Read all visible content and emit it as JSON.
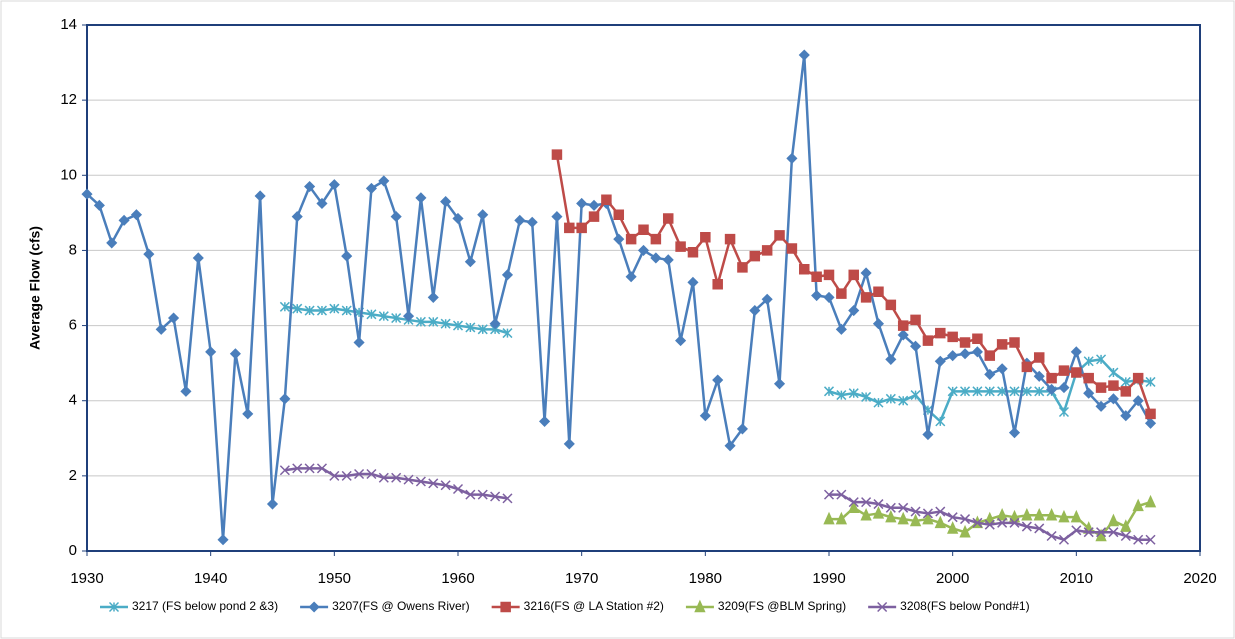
{
  "chart_data": {
    "type": "line",
    "y_label": "Average Flow (cfs)",
    "xlim": [
      1930,
      2020
    ],
    "xticks": [
      1930,
      1940,
      1950,
      1960,
      1970,
      1980,
      1990,
      2000,
      2010,
      2020
    ],
    "ylim": [
      0,
      14
    ],
    "yticks": [
      0,
      2,
      4,
      6,
      8,
      10,
      12,
      14
    ],
    "grid": true,
    "legend": "bottom",
    "series": [
      {
        "name": "3217 (FS below pond 2 &3)",
        "color": "#4bacc6",
        "marker": "asterisk",
        "x": [
          1946,
          1947,
          1948,
          1949,
          1950,
          1951,
          1952,
          1953,
          1954,
          1955,
          1956,
          1957,
          1958,
          1959,
          1960,
          1961,
          1962,
          1963,
          1964,
          1965,
          1966,
          1967,
          1968,
          1969,
          1970,
          1971,
          1972,
          1973,
          1974,
          1975,
          1976,
          1977,
          1978,
          1979,
          1980,
          1981,
          1982,
          1983,
          1984,
          1985,
          1986,
          1987,
          1988,
          1989,
          1990,
          1991,
          1992,
          1993,
          1994,
          1995,
          1996,
          1997,
          1998,
          1999,
          2000,
          2001,
          2002,
          2003,
          2004,
          2005,
          2006,
          2007,
          2008,
          2009,
          2010,
          2011,
          2012,
          2013,
          2014,
          2015,
          2016
        ],
        "values": [
          6.5,
          6.45,
          6.4,
          6.4,
          6.45,
          6.4,
          6.35,
          6.3,
          6.25,
          6.2,
          6.15,
          6.1,
          6.1,
          6.05,
          6.0,
          5.95,
          5.9,
          5.9,
          5.8,
          null,
          null,
          null,
          null,
          null,
          null,
          null,
          null,
          null,
          null,
          null,
          null,
          null,
          null,
          null,
          null,
          null,
          null,
          null,
          null,
          null,
          null,
          null,
          null,
          null,
          4.25,
          4.15,
          4.2,
          4.1,
          3.95,
          4.05,
          4.0,
          4.15,
          3.75,
          3.45,
          4.25,
          4.25,
          4.25,
          4.25,
          4.25,
          4.25,
          4.25,
          4.25,
          4.25,
          3.7,
          4.75,
          5.05,
          5.1,
          4.75,
          4.5,
          4.55,
          4.5
        ]
      },
      {
        "name": "3207(FS @ Owens River)",
        "color": "#4a7ebb",
        "marker": "diamond",
        "x": [
          1930,
          1931,
          1932,
          1933,
          1934,
          1935,
          1936,
          1937,
          1938,
          1939,
          1940,
          1941,
          1942,
          1943,
          1944,
          1945,
          1946,
          1947,
          1948,
          1949,
          1950,
          1951,
          1952,
          1953,
          1954,
          1955,
          1956,
          1957,
          1958,
          1959,
          1960,
          1961,
          1962,
          1963,
          1964,
          1965,
          1966,
          1967,
          1968,
          1969,
          1970,
          1971,
          1972,
          1973,
          1974,
          1975,
          1976,
          1977,
          1978,
          1979,
          1980,
          1981,
          1982,
          1983,
          1984,
          1985,
          1986,
          1987,
          1988,
          1989,
          1990,
          1991,
          1992,
          1993,
          1994,
          1995,
          1996,
          1997,
          1998,
          1999,
          2000,
          2001,
          2002,
          2003,
          2004,
          2005,
          2006,
          2007,
          2008,
          2009,
          2010,
          2011,
          2012,
          2013,
          2014,
          2015,
          2016
        ],
        "values": [
          9.5,
          9.2,
          8.2,
          8.8,
          8.95,
          7.9,
          5.9,
          6.2,
          4.25,
          7.8,
          5.3,
          0.3,
          5.25,
          3.65,
          9.45,
          1.25,
          4.05,
          8.9,
          9.7,
          9.25,
          9.75,
          7.85,
          5.55,
          9.65,
          9.85,
          8.9,
          6.25,
          9.4,
          6.75,
          9.3,
          8.85,
          7.7,
          8.95,
          6.05,
          7.35,
          8.8,
          8.75,
          3.45,
          8.9,
          2.85,
          9.25,
          9.2,
          9.25,
          8.3,
          7.3,
          8.0,
          7.8,
          7.75,
          5.6,
          7.15,
          3.6,
          4.55,
          2.8,
          3.25,
          6.4,
          6.7,
          4.45,
          10.45,
          13.2,
          6.8,
          6.75,
          5.9,
          6.4,
          7.4,
          6.05,
          5.1,
          5.75,
          5.45,
          3.1,
          5.05,
          5.2,
          5.25,
          5.3,
          4.7,
          4.85,
          3.15,
          5.0,
          4.65,
          4.3,
          4.35,
          5.3,
          4.2,
          3.85,
          4.05,
          3.6,
          4.0,
          3.4
        ]
      },
      {
        "name": "3216(FS @ LA Station #2)",
        "color": "#be4b48",
        "marker": "square",
        "x": [
          1968,
          1969,
          1970,
          1971,
          1972,
          1973,
          1974,
          1975,
          1976,
          1977,
          1978,
          1979,
          1980,
          1981,
          1982,
          1983,
          1984,
          1985,
          1986,
          1987,
          1988,
          1989,
          1990,
          1991,
          1992,
          1993,
          1994,
          1995,
          1996,
          1997,
          1998,
          1999,
          2000,
          2001,
          2002,
          2003,
          2004,
          2005,
          2006,
          2007,
          2008,
          2009,
          2010,
          2011,
          2012,
          2013,
          2014,
          2015,
          2016
        ],
        "values": [
          10.55,
          8.6,
          8.6,
          8.9,
          9.35,
          8.95,
          8.3,
          8.55,
          8.3,
          8.85,
          8.1,
          7.95,
          8.35,
          7.1,
          8.3,
          7.55,
          7.85,
          8.0,
          8.4,
          8.05,
          7.5,
          7.3,
          7.35,
          6.85,
          7.35,
          6.75,
          6.9,
          6.55,
          6.0,
          6.15,
          5.6,
          5.8,
          5.7,
          5.55,
          5.65,
          5.2,
          5.5,
          5.55,
          4.9,
          5.15,
          4.6,
          4.8,
          4.75,
          4.6,
          4.35,
          4.4,
          4.25,
          4.6,
          3.65
        ]
      },
      {
        "name": "3209(FS @BLM Spring)",
        "color": "#98b954",
        "marker": "triangle",
        "x": [
          1990,
          1991,
          1992,
          1993,
          1994,
          1995,
          1996,
          1997,
          1998,
          1999,
          2000,
          2001,
          2002,
          2003,
          2004,
          2005,
          2006,
          2007,
          2008,
          2009,
          2010,
          2011,
          2012,
          2013,
          2014,
          2015,
          2016
        ],
        "values": [
          0.85,
          0.85,
          1.15,
          0.95,
          1.0,
          0.9,
          0.85,
          0.8,
          0.85,
          0.75,
          0.6,
          0.5,
          0.75,
          0.85,
          0.95,
          0.9,
          0.95,
          0.95,
          0.95,
          0.9,
          0.9,
          0.6,
          0.4,
          0.8,
          0.65,
          1.2,
          1.3
        ]
      },
      {
        "name": "3208(FS below Pond#1)",
        "color": "#7d60a0",
        "marker": "x",
        "x": [
          1946,
          1947,
          1948,
          1949,
          1950,
          1951,
          1952,
          1953,
          1954,
          1955,
          1956,
          1957,
          1958,
          1959,
          1960,
          1961,
          1962,
          1963,
          1964,
          1965,
          1966,
          1967,
          1968,
          1969,
          1970,
          1971,
          1972,
          1973,
          1974,
          1975,
          1976,
          1977,
          1978,
          1979,
          1980,
          1981,
          1982,
          1983,
          1984,
          1985,
          1986,
          1987,
          1988,
          1989,
          1990,
          1991,
          1992,
          1993,
          1994,
          1995,
          1996,
          1997,
          1998,
          1999,
          2000,
          2001,
          2002,
          2003,
          2004,
          2005,
          2006,
          2007,
          2008,
          2009,
          2010,
          2011,
          2012,
          2013,
          2014,
          2015,
          2016
        ],
        "values": [
          2.15,
          2.2,
          2.2,
          2.2,
          2.0,
          2.0,
          2.05,
          2.05,
          1.95,
          1.95,
          1.9,
          1.85,
          1.8,
          1.75,
          1.65,
          1.5,
          1.5,
          1.45,
          1.4,
          null,
          null,
          null,
          null,
          null,
          null,
          null,
          null,
          null,
          null,
          null,
          null,
          null,
          null,
          null,
          null,
          null,
          null,
          null,
          null,
          null,
          null,
          null,
          null,
          null,
          1.5,
          1.5,
          1.3,
          1.3,
          1.25,
          1.15,
          1.15,
          1.05,
          1.0,
          1.05,
          0.9,
          0.85,
          0.75,
          0.7,
          0.75,
          0.75,
          0.65,
          0.6,
          0.4,
          0.3,
          0.55,
          0.5,
          0.5,
          0.5,
          0.4,
          0.3,
          0.3
        ]
      }
    ]
  }
}
